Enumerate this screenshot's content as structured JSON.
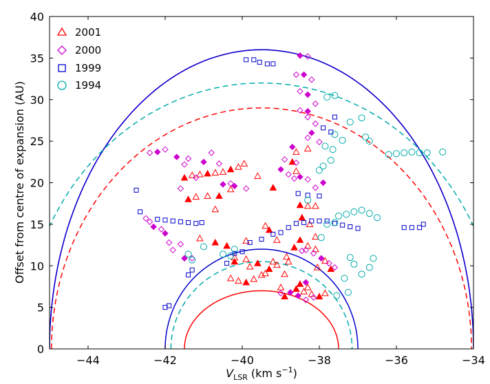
{
  "chart_data": {
    "type": "scatter",
    "xlabel": "V_LSR (km s^-1)",
    "xlabel_main": "V",
    "xlabel_sub": "LSR",
    "xlabel_unit": "(km s",
    "xlabel_exp": "−1",
    "xlabel_close": ")",
    "ylabel": "Offset from centre of expansion (AU)",
    "xlim": [
      -45,
      -34
    ],
    "ylim": [
      0,
      40
    ],
    "xticks": [
      -44,
      -42,
      -40,
      -38,
      -36,
      -34
    ],
    "xtick_labels": [
      "−44",
      "−42",
      "−40",
      "−38",
      "−36",
      "−34"
    ],
    "yticks": [
      0,
      5,
      10,
      15,
      20,
      25,
      30,
      35,
      40
    ],
    "ytick_labels": [
      "0",
      "5",
      "10",
      "15",
      "20",
      "25",
      "30",
      "35",
      "40"
    ],
    "legend_position": "top-left",
    "series": [
      {
        "name": "2001",
        "label": "2001",
        "color": "#ff0000",
        "marker": "triangle",
        "points": [
          [
            -41.5,
            20.6
          ],
          [
            -41.3,
            20.9
          ],
          [
            -41.1,
            21.0
          ],
          [
            -40.9,
            21.1
          ],
          [
            -40.7,
            21.2
          ],
          [
            -40.5,
            21.3
          ],
          [
            -40.3,
            21.6
          ],
          [
            -40.1,
            21.9
          ],
          [
            -39.95,
            22.3
          ],
          [
            -41.4,
            18.0
          ],
          [
            -41.2,
            18.3
          ],
          [
            -40.9,
            18.4
          ],
          [
            -40.6,
            18.4
          ],
          [
            -40.3,
            19.2
          ],
          [
            -38.6,
            21.4
          ],
          [
            -38.7,
            22.5
          ],
          [
            -38.6,
            23.7
          ],
          [
            -38.3,
            24.1
          ],
          [
            -38.5,
            17.3
          ],
          [
            -38.3,
            17.2
          ],
          [
            -38.1,
            17.2
          ],
          [
            -38.45,
            15.8
          ],
          [
            -38.25,
            15.0
          ],
          [
            -38.1,
            13.5
          ],
          [
            -38.5,
            13.1
          ],
          [
            -38.3,
            12.4
          ],
          [
            -38.1,
            12.0
          ],
          [
            -38.65,
            12.2
          ],
          [
            -38.05,
            9.8
          ],
          [
            -37.85,
            10.6
          ],
          [
            -37.7,
            9.6
          ],
          [
            -40.3,
            8.5
          ],
          [
            -40.1,
            8.2
          ],
          [
            -39.9,
            8.0
          ],
          [
            -39.7,
            8.4
          ],
          [
            -39.5,
            8.9
          ],
          [
            -39.3,
            9.6
          ],
          [
            -39.1,
            10.1
          ],
          [
            -38.9,
            9.0
          ],
          [
            -40.2,
            10.5
          ],
          [
            -39.8,
            9.9
          ],
          [
            -39.4,
            9.1
          ],
          [
            -38.6,
            7.2
          ],
          [
            -38.4,
            6.9
          ],
          [
            -38.2,
            6.6
          ],
          [
            -38.5,
            7.8
          ],
          [
            -38.3,
            7.4
          ],
          [
            -37.85,
            6.7
          ],
          [
            -39.3,
            14.3
          ],
          [
            -39.1,
            13.1
          ],
          [
            -39.9,
            13.0
          ],
          [
            -39.2,
            19.4
          ],
          [
            -39.6,
            20.8
          ],
          [
            -39.4,
            14.8
          ],
          [
            -40.4,
            12.4
          ],
          [
            -40.2,
            11.0
          ],
          [
            -39.9,
            10.8
          ],
          [
            -39.6,
            10.3
          ],
          [
            -39.2,
            10.5
          ],
          [
            -38.8,
            10.5
          ],
          [
            -40.7,
            12.8
          ],
          [
            -41.1,
            13.3
          ],
          [
            -40.7,
            16.8
          ],
          [
            -38.9,
            6.3
          ],
          [
            -39.0,
            7.4
          ],
          [
            -38.85,
            11.1
          ],
          [
            -38.0,
            6.3
          ]
        ]
      },
      {
        "name": "2000",
        "label": "2000",
        "color": "#cc00cc",
        "marker": "diamond",
        "points": [
          [
            -42.2,
            23.7
          ],
          [
            -42.0,
            24.0
          ],
          [
            -42.4,
            23.6
          ],
          [
            -41.7,
            23.1
          ],
          [
            -41.4,
            22.9
          ],
          [
            -41.5,
            22.2
          ],
          [
            -41.0,
            22.5
          ],
          [
            -40.6,
            22.3
          ],
          [
            -40.8,
            23.6
          ],
          [
            -40.5,
            19.8
          ],
          [
            -40.3,
            19.9
          ],
          [
            -41.6,
            19.3
          ],
          [
            -40.2,
            19.6
          ],
          [
            -39.9,
            19.3
          ],
          [
            -42.4,
            15.3
          ],
          [
            -42.3,
            14.7
          ],
          [
            -42.5,
            15.7
          ],
          [
            -42.1,
            14.4
          ],
          [
            -42.0,
            13.9
          ],
          [
            -41.9,
            12.8
          ],
          [
            -41.8,
            11.9
          ],
          [
            -41.5,
            10.9
          ],
          [
            -41.3,
            10.9
          ],
          [
            -41.6,
            12.6
          ],
          [
            -38.5,
            35.3
          ],
          [
            -38.3,
            35.2
          ],
          [
            -38.6,
            33.0
          ],
          [
            -38.4,
            33.0
          ],
          [
            -38.2,
            32.4
          ],
          [
            -38.5,
            31.0
          ],
          [
            -38.3,
            30.6
          ],
          [
            -38.1,
            29.5
          ],
          [
            -38.5,
            28.7
          ],
          [
            -38.3,
            28.6
          ],
          [
            -38.3,
            27.9
          ],
          [
            -38.1,
            27.1
          ],
          [
            -38.2,
            26.0
          ],
          [
            -38.3,
            25.4
          ],
          [
            -38.0,
            24.9
          ],
          [
            -38.7,
            24.3
          ],
          [
            -38.6,
            22.4
          ],
          [
            -38.9,
            22.8
          ],
          [
            -39.0,
            21.6
          ],
          [
            -38.8,
            21.0
          ],
          [
            -38.65,
            20.5
          ],
          [
            -38.5,
            20.7
          ],
          [
            -38.3,
            20.4
          ],
          [
            -38.1,
            19.4
          ],
          [
            -37.9,
            20.0
          ],
          [
            -38.35,
            11.9
          ],
          [
            -38.15,
            11.5
          ],
          [
            -37.95,
            10.9
          ],
          [
            -37.75,
            10.3
          ],
          [
            -37.6,
            9.8
          ],
          [
            -38.55,
            6.4
          ],
          [
            -38.35,
            5.9
          ],
          [
            -38.15,
            6.2
          ],
          [
            -38.75,
            6.8
          ],
          [
            -39.0,
            6.7
          ],
          [
            -38.45,
            11.8
          ],
          [
            -38.35,
            8.0
          ],
          [
            -41.2,
            20.6
          ]
        ]
      },
      {
        "name": "1999",
        "label": "1999",
        "color": "#0000cc",
        "marker": "square",
        "points": [
          [
            -41.9,
            5.2
          ],
          [
            -42.0,
            5.0
          ],
          [
            -42.75,
            19.1
          ],
          [
            -42.65,
            16.5
          ],
          [
            -42.2,
            15.6
          ],
          [
            -42.0,
            15.5
          ],
          [
            -41.8,
            15.4
          ],
          [
            -41.6,
            15.3
          ],
          [
            -41.4,
            15.2
          ],
          [
            -41.2,
            15.1
          ],
          [
            -41.05,
            15.2
          ],
          [
            -39.9,
            34.8
          ],
          [
            -39.7,
            34.8
          ],
          [
            -39.55,
            34.5
          ],
          [
            -39.35,
            34.3
          ],
          [
            -39.2,
            34.3
          ],
          [
            -39.2,
            13.8
          ],
          [
            -39.0,
            14.0
          ],
          [
            -38.8,
            14.6
          ],
          [
            -38.6,
            15.1
          ],
          [
            -38.4,
            15.2
          ],
          [
            -38.2,
            15.4
          ],
          [
            -38.0,
            15.4
          ],
          [
            -37.8,
            15.4
          ],
          [
            -37.6,
            15.1
          ],
          [
            -37.4,
            14.9
          ],
          [
            -37.2,
            14.7
          ],
          [
            -37.0,
            14.5
          ],
          [
            -38.3,
            18.5
          ],
          [
            -38.0,
            18.4
          ],
          [
            -38.55,
            18.7
          ],
          [
            -39.5,
            13.2
          ],
          [
            -39.8,
            12.8
          ],
          [
            -40.0,
            11.7
          ],
          [
            -40.2,
            11.5
          ],
          [
            -41.3,
            9.5
          ],
          [
            -41.4,
            8.9
          ],
          [
            -40.4,
            10.3
          ],
          [
            -35.8,
            14.6
          ],
          [
            -35.6,
            14.6
          ],
          [
            -35.4,
            14.6
          ],
          [
            -35.3,
            15.0
          ],
          [
            -37.9,
            26.6
          ],
          [
            -37.7,
            26.1
          ],
          [
            -37.6,
            27.9
          ]
        ]
      },
      {
        "name": "1994",
        "label": "1994",
        "color": "#00aaaa",
        "marker": "circle",
        "points": [
          [
            -37.8,
            30.3
          ],
          [
            -37.6,
            30.5
          ],
          [
            -37.2,
            27.3
          ],
          [
            -36.9,
            27.8
          ],
          [
            -36.8,
            25.5
          ],
          [
            -36.7,
            25.0
          ],
          [
            -37.6,
            25.8
          ],
          [
            -37.4,
            25.1
          ],
          [
            -37.65,
            24.0
          ],
          [
            -37.85,
            24.4
          ],
          [
            -37.7,
            22.7
          ],
          [
            -37.9,
            22.0
          ],
          [
            -38.0,
            21.5
          ],
          [
            -36.2,
            23.4
          ],
          [
            -36.0,
            23.5
          ],
          [
            -35.8,
            23.6
          ],
          [
            -35.6,
            23.7
          ],
          [
            -35.4,
            23.6
          ],
          [
            -35.2,
            23.6
          ],
          [
            -34.8,
            23.7
          ],
          [
            -37.5,
            16.0
          ],
          [
            -37.3,
            16.2
          ],
          [
            -37.1,
            16.5
          ],
          [
            -36.9,
            16.7
          ],
          [
            -36.7,
            16.3
          ],
          [
            -36.5,
            15.8
          ],
          [
            -37.6,
            15.2
          ],
          [
            -37.8,
            15.0
          ],
          [
            -41.4,
            11.4
          ],
          [
            -41.3,
            10.7
          ],
          [
            -40.5,
            11.4
          ],
          [
            -40.3,
            11.2
          ],
          [
            -41.0,
            12.3
          ],
          [
            -40.2,
            12.0
          ],
          [
            -37.2,
            11.0
          ],
          [
            -37.1,
            10.2
          ],
          [
            -36.9,
            9.0
          ],
          [
            -36.7,
            9.8
          ],
          [
            -36.6,
            10.9
          ],
          [
            -37.35,
            8.5
          ],
          [
            -37.25,
            6.8
          ],
          [
            -37.55,
            6.4
          ],
          [
            -37.95,
            13.4
          ],
          [
            -38.3,
            17.9
          ]
        ]
      }
    ],
    "curves": [
      {
        "name": "outer-shell-2000",
        "color": "#cc00cc",
        "dash": "",
        "center": -39.5,
        "halfwidth": 5.5,
        "radius": 36
      },
      {
        "name": "outer-shell-1999",
        "color": "#0000cc",
        "dash": "",
        "center": -39.5,
        "halfwidth": 5.5,
        "radius": 36
      },
      {
        "name": "outer-shell-1994",
        "color": "#00aaaa",
        "dash": "8,5",
        "center": -39.5,
        "halfwidth": 6.2,
        "radius": 32
      },
      {
        "name": "outer-shell-2001",
        "color": "#ff0000",
        "dash": "8,5",
        "center": -39.5,
        "halfwidth": 5.45,
        "radius": 29
      },
      {
        "name": "inner-shell-1999",
        "color": "#0000cc",
        "dash": "",
        "center": -39.5,
        "halfwidth": 2.5,
        "radius": 12
      },
      {
        "name": "inner-shell-1994",
        "color": "#00aaaa",
        "dash": "8,5",
        "center": -39.5,
        "halfwidth": 2.35,
        "radius": 10.5
      },
      {
        "name": "inner-shell-2001",
        "color": "#ff0000",
        "dash": "",
        "center": -39.5,
        "halfwidth": 2.0,
        "radius": 7.0
      }
    ]
  }
}
